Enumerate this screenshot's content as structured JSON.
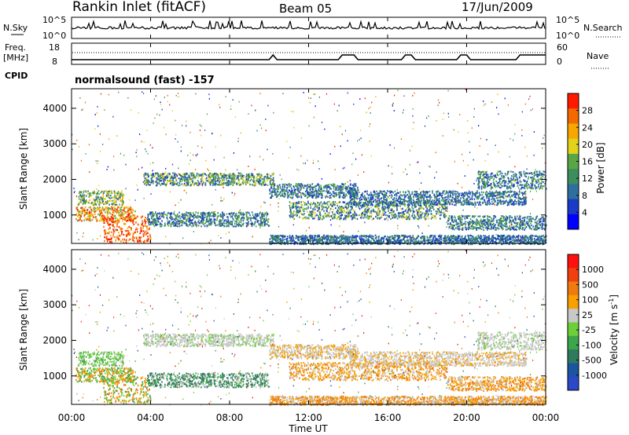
{
  "header": {
    "station": "Rankin Inlet (fitACF)",
    "beam": "Beam 05",
    "date": "17/Jun/2009"
  },
  "status_panels": {
    "nsky_label": "N.Sky",
    "nsearch_label": "N.Search",
    "nsky_ticks": [
      "10^5",
      "10^0"
    ],
    "nsearch_ticks": [
      "10^5",
      "10^0"
    ],
    "freq_label": "Freq.",
    "freq_unit": "[MHz]",
    "freq_ticks": [
      "18",
      "8"
    ],
    "nave_label": "Nave",
    "nave_ticks": [
      "60",
      "0"
    ],
    "cpid_label": "CPID",
    "cpid_text": "normalsound (fast) -157"
  },
  "colors": {
    "power": [
      "#0000ff",
      "#1a3ac8",
      "#2e6f9e",
      "#3c8f5c",
      "#5aa646",
      "#e3d21a",
      "#f7a800",
      "#f46a00",
      "#ff1a00"
    ],
    "velocity": [
      "#2a48c8",
      "#1a55a0",
      "#2e7a5c",
      "#3ca64a",
      "#6ccf3a",
      "#c8c8c8",
      "#f7a000",
      "#f07a10",
      "#f04010",
      "#ff1010"
    ]
  },
  "chart_data": [
    {
      "type": "heatmap",
      "name": "power",
      "ylabel": "Slant Range [km]",
      "yticks": [
        "4000",
        "3000",
        "2000",
        "1000"
      ],
      "ylim": [
        200,
        4550
      ],
      "xticks": [
        "00:00",
        "04:00",
        "08:00",
        "12:00",
        "16:00",
        "20:00",
        "00:00"
      ],
      "xlim_hours": [
        0,
        24
      ],
      "colorbar_label": "Power [dB]",
      "colorbar_ticks": [
        "28",
        "24",
        "20",
        "16",
        "12",
        "8",
        "4"
      ]
    },
    {
      "type": "heatmap",
      "name": "velocity",
      "ylabel": "Slant Range [km]",
      "yticks": [
        "4000",
        "3000",
        "2000",
        "1000"
      ],
      "ylim": [
        200,
        4550
      ],
      "xticks": [
        "00:00",
        "04:00",
        "08:00",
        "12:00",
        "16:00",
        "20:00",
        "00:00"
      ],
      "xlim_hours": [
        0,
        24
      ],
      "xlabel": "Time UT",
      "colorbar_label": "Velocity [m s^-1]",
      "colorbar_ticks": [
        "1000",
        "500",
        "100",
        "25",
        "-25",
        "-100",
        "-500",
        "-1000"
      ]
    }
  ],
  "scatter_bands": [
    {
      "t0": 0.3,
      "t1": 2.6,
      "r0": 1300,
      "r1": 1700,
      "pv": [
        2,
        3,
        4,
        5,
        6
      ],
      "vv": [
        3,
        4,
        4,
        5
      ]
    },
    {
      "t0": 0.2,
      "t1": 3.2,
      "r0": 850,
      "r1": 1250,
      "pv": [
        4,
        5,
        6,
        7,
        8
      ],
      "vv": [
        4,
        6,
        7,
        3
      ]
    },
    {
      "t0": 1.6,
      "t1": 4.0,
      "r0": 250,
      "r1": 1000,
      "pv": [
        7,
        8,
        8,
        7,
        6
      ],
      "vv": [
        3,
        4,
        6,
        7
      ]
    },
    {
      "t0": 3.6,
      "t1": 10.2,
      "r0": 1850,
      "r1": 2200,
      "pv": [
        1,
        2,
        3,
        4,
        5
      ],
      "vv": [
        5,
        5,
        5,
        4
      ]
    },
    {
      "t0": 3.8,
      "t1": 10.0,
      "r0": 700,
      "r1": 1100,
      "pv": [
        1,
        2,
        3,
        4
      ],
      "vv": [
        2,
        2,
        3,
        5
      ]
    },
    {
      "t0": 10.0,
      "t1": 14.5,
      "r0": 1500,
      "r1": 1900,
      "pv": [
        1,
        2,
        3,
        4
      ],
      "vv": [
        5,
        5,
        6,
        6
      ]
    },
    {
      "t0": 11.0,
      "t1": 19.0,
      "r0": 900,
      "r1": 1400,
      "pv": [
        1,
        2,
        3,
        4,
        5
      ],
      "vv": [
        5,
        6,
        7,
        6
      ]
    },
    {
      "t0": 14.0,
      "t1": 23.0,
      "r0": 1300,
      "r1": 1700,
      "pv": [
        1,
        2,
        3
      ],
      "vv": [
        5,
        5,
        6
      ]
    },
    {
      "t0": 20.5,
      "t1": 24.0,
      "r0": 1750,
      "r1": 2250,
      "pv": [
        1,
        2,
        3,
        4
      ],
      "vv": [
        5,
        5,
        4,
        5
      ]
    },
    {
      "t0": 19.0,
      "t1": 24.0,
      "r0": 600,
      "r1": 1000,
      "pv": [
        1,
        2,
        3,
        4
      ],
      "vv": [
        6,
        7,
        6,
        5
      ]
    },
    {
      "t0": 10.0,
      "t1": 24.0,
      "r0": 200,
      "r1": 450,
      "pv": [
        1,
        2,
        3
      ],
      "vv": [
        5,
        6,
        7
      ]
    }
  ]
}
